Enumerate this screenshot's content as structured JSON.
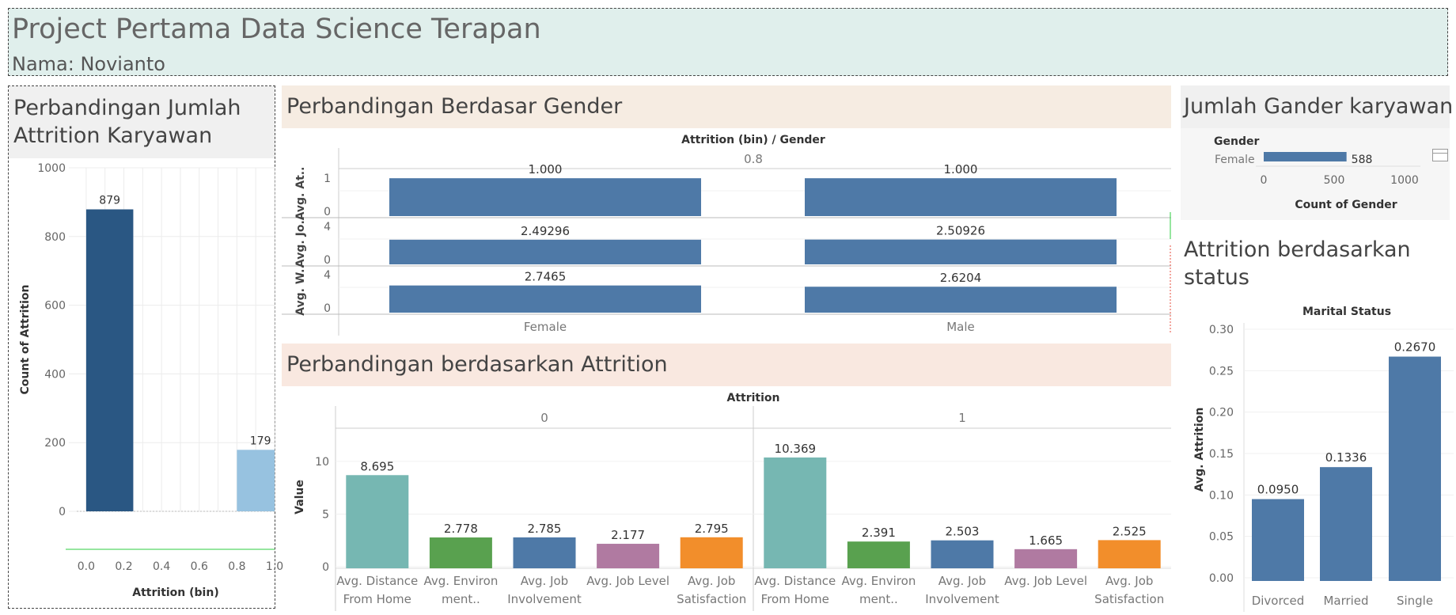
{
  "header": {
    "title": "Project Pertama Data Science Terapan",
    "subtitle": "Nama: Novianto"
  },
  "panel_attrition_count": {
    "title_line1": "Perbandingan Jumlah",
    "title_line2": "Attrition Karyawan"
  },
  "panel_gender": {
    "title": "Perbandingan Berdasar Gender"
  },
  "panel_attrition_compare": {
    "title": "Perbandingan berdasarkan Attrition"
  },
  "panel_gender_count": {
    "title": "Jumlah Gander karyawan"
  },
  "panel_marital": {
    "title_line1": "Attrition berdasarkan",
    "title_line2": "status"
  },
  "colors": {
    "dark_blue": "#2a5783",
    "light_blue": "#97c2e0",
    "steel_blue": "#4e79a7",
    "teal": "#76b7b2",
    "green": "#59a14f",
    "purple": "#b07aa1",
    "orange": "#f28e2b",
    "header_bg": "#e0efec",
    "band_gender": "#f6ece2",
    "band_attrition": "#f9e8e0",
    "band_grey": "#f0f0f0"
  },
  "chart_data": [
    {
      "id": "attrition_count",
      "type": "bar",
      "xlabel": "Attrition (bin)",
      "ylabel": "Count of Attrition",
      "x_ticks": [
        "0.0",
        "0.2",
        "0.4",
        "0.6",
        "0.8",
        "1.0"
      ],
      "y_ticks": [
        "0",
        "200",
        "400",
        "600",
        "800",
        "1000"
      ],
      "ylim": [
        0,
        1000
      ],
      "xlim": [
        -0.05,
        1.0
      ],
      "bars": [
        {
          "x_start": 0.0,
          "x_end": 0.25,
          "value": 879,
          "label": "879"
        },
        {
          "x_start": 0.8,
          "x_end": 1.05,
          "value": 179,
          "label": "179"
        }
      ]
    },
    {
      "id": "gender_compare",
      "type": "bar",
      "title": "Attrition (bin)  /  Gender",
      "column_header": "0.8",
      "categories": [
        "Female",
        "Male"
      ],
      "rows": [
        {
          "label": "Avg. At..",
          "ticks": [
            "1",
            "0"
          ],
          "ylim": [
            0,
            1.15
          ],
          "values": [
            1.0,
            1.0
          ],
          "labels": [
            "1.000",
            "1.000"
          ]
        },
        {
          "label": "Avg. Jo..",
          "ticks": [
            "4",
            "0"
          ],
          "ylim": [
            0,
            4.4
          ],
          "values": [
            2.49296,
            2.50926
          ],
          "labels": [
            "2.49296",
            "2.50926"
          ]
        },
        {
          "label": "Avg. W..",
          "ticks": [
            "4",
            "0"
          ],
          "ylim": [
            0,
            4.4
          ],
          "values": [
            2.7465,
            2.6204
          ],
          "labels": [
            "2.7465",
            "2.6204"
          ]
        }
      ]
    },
    {
      "id": "attrition_compare",
      "type": "bar",
      "title": "Attrition",
      "ylabel": "Value",
      "y_ticks": [
        "0",
        "5",
        "10"
      ],
      "ylim": [
        0,
        13
      ],
      "colors": [
        "#76b7b2",
        "#59a14f",
        "#4e79a7",
        "#b07aa1",
        "#f28e2b"
      ],
      "categories": [
        [
          "Avg. Distance",
          "From Home"
        ],
        [
          "Avg. Environ",
          "ment.."
        ],
        [
          "Avg. Job",
          "Involvement"
        ],
        [
          "Avg. Job Level",
          ""
        ],
        [
          "Avg. Job",
          "Satisfaction"
        ]
      ],
      "groups": [
        {
          "name": "0",
          "values": [
            8.695,
            2.778,
            2.785,
            2.177,
            2.795
          ],
          "labels": [
            "8.695",
            "2.778",
            "2.785",
            "2.177",
            "2.795"
          ]
        },
        {
          "name": "1",
          "values": [
            10.369,
            2.391,
            2.503,
            1.665,
            2.525
          ],
          "labels": [
            "10.369",
            "2.391",
            "2.503",
            "1.665",
            "2.525"
          ]
        }
      ]
    },
    {
      "id": "gender_count",
      "type": "bar",
      "orientation": "horizontal",
      "row_header": "Gender",
      "categories": [
        "Female"
      ],
      "values": [
        588
      ],
      "labels": [
        "588"
      ],
      "xlabel": "Count of Gender",
      "x_ticks": [
        "0",
        "500",
        "1000"
      ],
      "xlim": [
        0,
        1000
      ]
    },
    {
      "id": "marital_status",
      "type": "bar",
      "title": "Marital Status",
      "ylabel": "Avg. Attrition",
      "categories": [
        "Divorced",
        "Married",
        "Single"
      ],
      "values": [
        0.095,
        0.1336,
        0.267
      ],
      "labels": [
        "0.0950",
        "0.1336",
        "0.2670"
      ],
      "y_ticks": [
        "0.00",
        "0.05",
        "0.10",
        "0.15",
        "0.20",
        "0.25",
        "0.30"
      ],
      "ylim": [
        0,
        0.3
      ]
    }
  ]
}
